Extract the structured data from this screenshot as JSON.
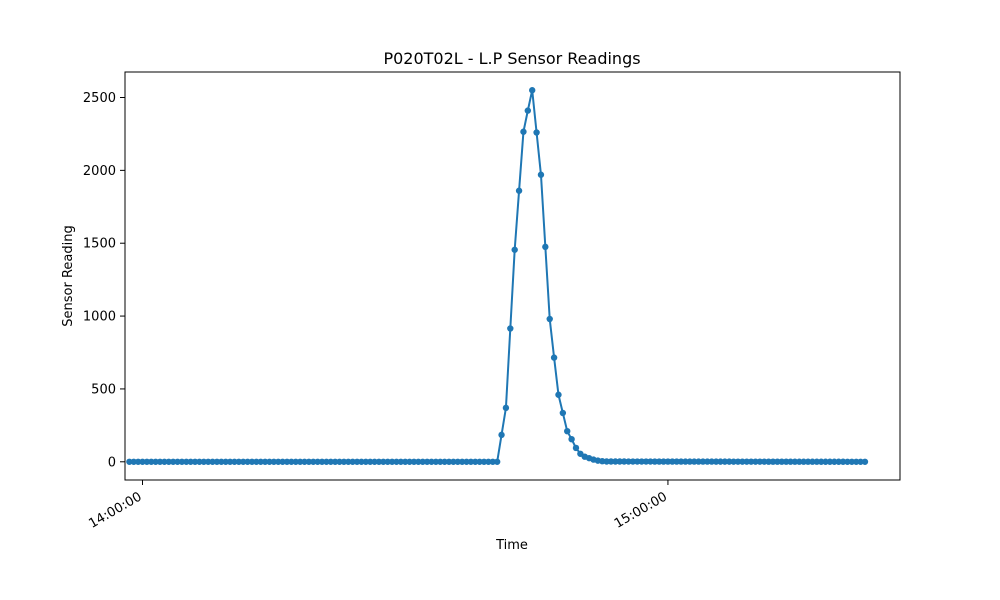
{
  "chart_data": {
    "type": "line",
    "title": "P020T02L - L.P Sensor Readings",
    "xlabel": "Time",
    "ylabel": "Sensor Reading",
    "grid": false,
    "legend": "none",
    "markers": true,
    "xlim": [
      "13:58:00",
      "15:26:30"
    ],
    "ylim": [
      -125,
      2675
    ],
    "yticks": [
      0,
      500,
      1000,
      1500,
      2000,
      2500
    ],
    "xticks": [
      "14:00:00",
      "15:00:00"
    ],
    "series": [
      {
        "color": "#1f77b4",
        "x": [
          "13:58:30",
          "14:40:30",
          "14:41:00",
          "14:41:30",
          "14:42:00",
          "14:42:30",
          "14:43:00",
          "14:43:30",
          "14:44:00",
          "14:44:30",
          "14:45:00",
          "14:45:30",
          "14:46:00",
          "14:46:30",
          "14:47:00",
          "14:47:30",
          "14:48:00",
          "14:48:30",
          "14:49:00",
          "14:49:30",
          "14:50:00",
          "14:50:30",
          "14:51:00",
          "14:51:30",
          "14:52:00",
          "14:52:30",
          "14:53:00",
          "15:22:30"
        ],
        "values": [
          0,
          0,
          185,
          370,
          915,
          1455,
          1860,
          2265,
          2410,
          2550,
          2260,
          1970,
          1475,
          980,
          715,
          460,
          335,
          210,
          155,
          95,
          55,
          35,
          25,
          15,
          8,
          4,
          2,
          0
        ]
      }
    ]
  }
}
